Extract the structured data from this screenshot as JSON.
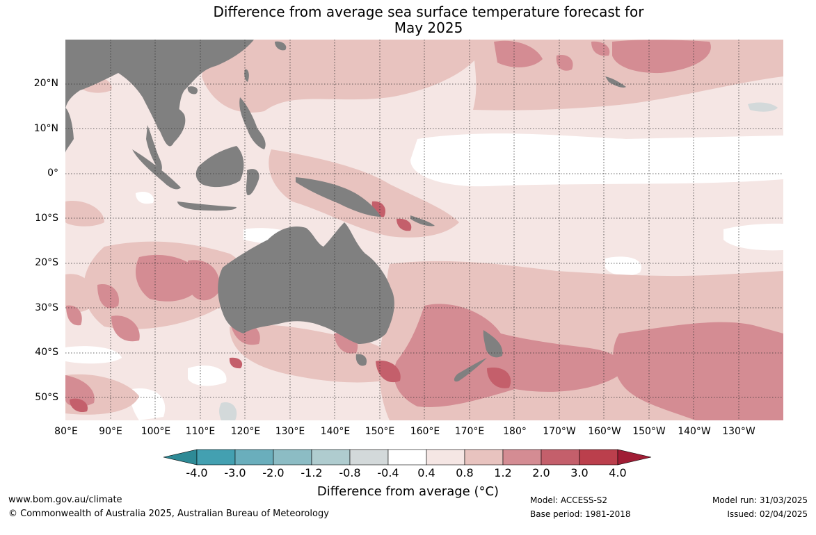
{
  "title": {
    "line1": "Difference from average sea surface temperature forecast for",
    "line2": "May 2025"
  },
  "map": {
    "lat_labels": [
      "20°N",
      "10°N",
      "0°",
      "10°S",
      "20°S",
      "30°S",
      "40°S",
      "50°S"
    ],
    "lon_labels": [
      "80°E",
      "90°E",
      "100°E",
      "110°E",
      "120°E",
      "130°E",
      "140°E",
      "150°E",
      "160°E",
      "170°E",
      "180°",
      "170°W",
      "160°W",
      "150°W",
      "140°W",
      "130°W"
    ],
    "land_color": "#808080",
    "grid_style": "dotted"
  },
  "colorbar": {
    "tick_labels": [
      "-4.0",
      "-3.0",
      "-2.0",
      "-1.2",
      "-0.8",
      "-0.4",
      "0.4",
      "0.8",
      "1.2",
      "2.0",
      "3.0",
      "4.0"
    ],
    "colors": [
      "#2e8a96",
      "#43a0b1",
      "#6aaebc",
      "#8cbcc4",
      "#afcccf",
      "#d3d9da",
      "#ffffff",
      "#f5e6e4",
      "#e8c3bf",
      "#d48c93",
      "#c45f6b",
      "#bb3f4c",
      "#a01d35"
    ],
    "label": "Difference from average (°C)"
  },
  "footer": {
    "website": "www.bom.gov.au/climate",
    "copyright": "© Commonwealth of Australia 2025, Australian Bureau of Meteorology",
    "model": "Model: ACCESS-S2",
    "base_period": "Base period: 1981-2018",
    "model_run": "Model run: 31/03/2025",
    "issued": "Issued: 02/04/2025"
  }
}
